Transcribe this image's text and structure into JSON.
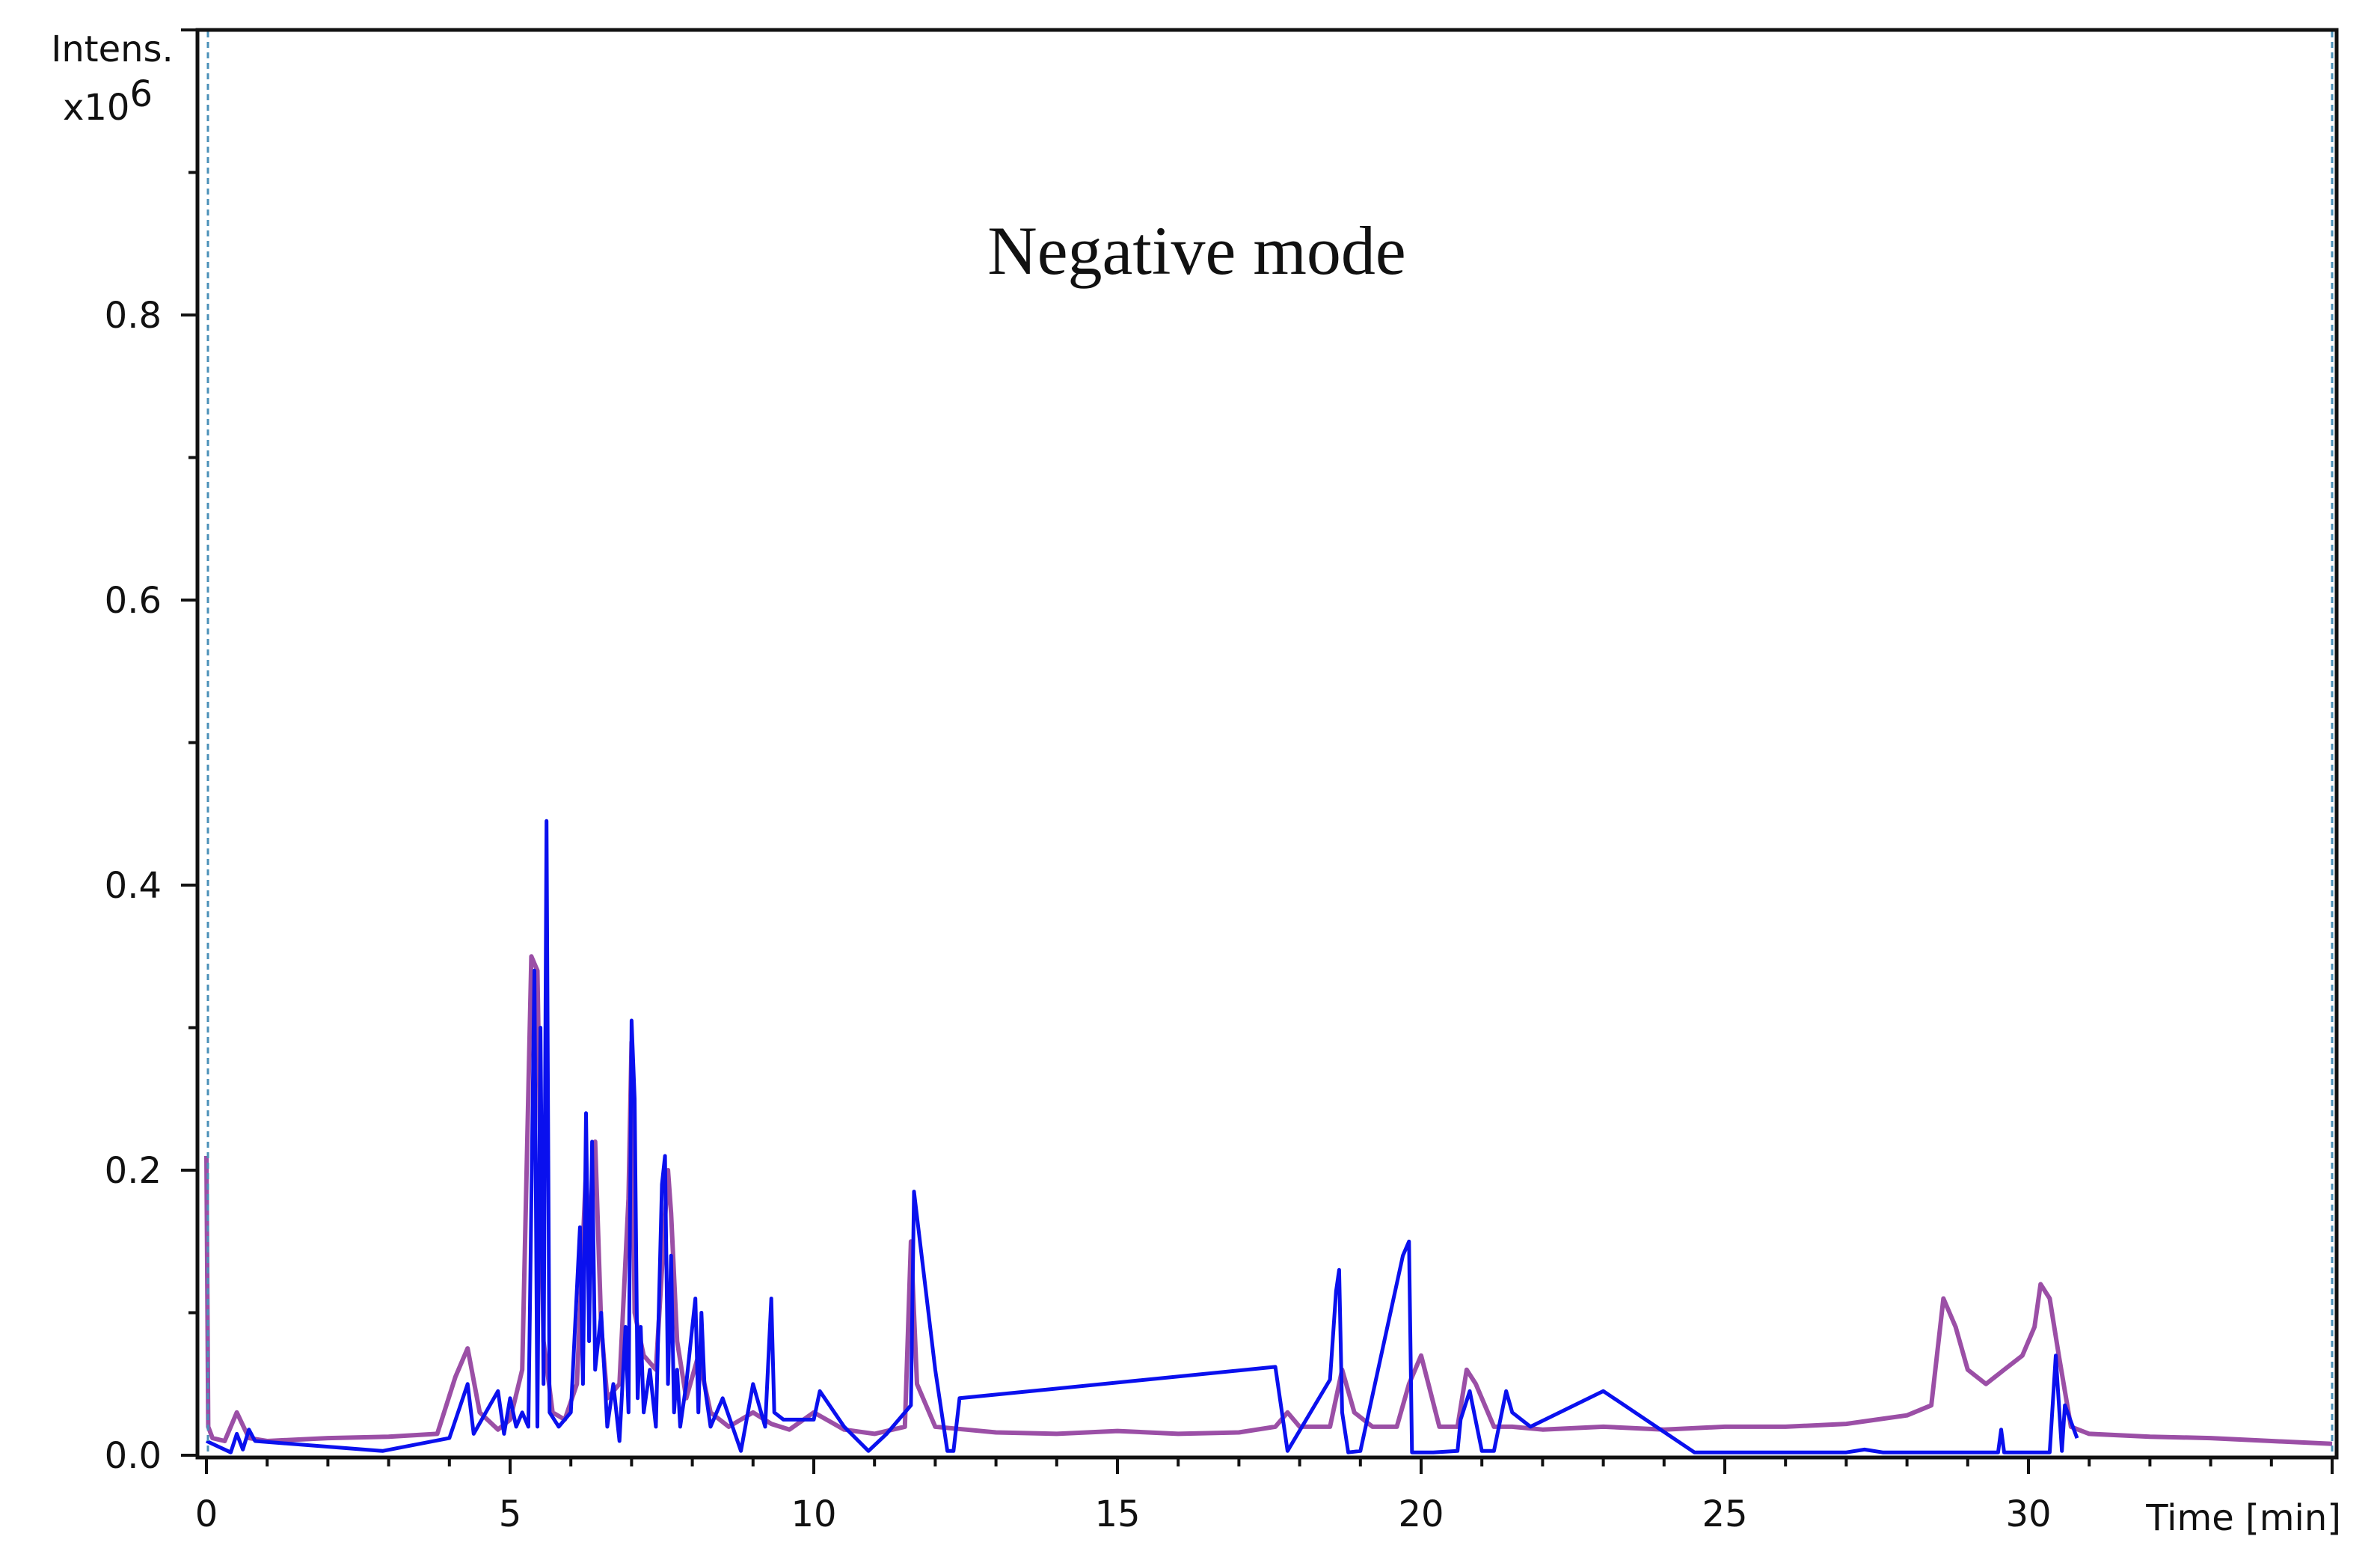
{
  "chart_data": {
    "type": "line",
    "title": "",
    "annotation": "Negative mode",
    "ylabel": "Intens.",
    "ylabel_multiplier_base": "x10",
    "ylabel_multiplier_exp": "6",
    "xlabel": "Time [min]",
    "xlim": [
      0,
      35
    ],
    "ylim": [
      0,
      1.0
    ],
    "x_ticks": [
      0,
      5,
      10,
      15,
      20,
      25,
      30
    ],
    "x_tick_labels": [
      "0",
      "5",
      "10",
      "15",
      "20",
      "25",
      "30"
    ],
    "y_ticks": [
      0.0,
      0.2,
      0.4,
      0.6,
      0.8
    ],
    "y_tick_labels": [
      "0.0",
      "0.2",
      "0.4",
      "0.6",
      "0.8"
    ],
    "grid": false,
    "legend": "none",
    "series": [
      {
        "color": "#9b4fa6",
        "x": [
          0.0,
          0.03,
          0.1,
          0.3,
          0.5,
          0.7,
          1.0,
          2.0,
          3.0,
          3.8,
          4.1,
          4.3,
          4.5,
          4.8,
          5.0,
          5.2,
          5.35,
          5.45,
          5.55,
          5.7,
          5.9,
          6.1,
          6.25,
          6.3,
          6.4,
          6.5,
          6.6,
          6.8,
          6.95,
          7.0,
          7.05,
          7.2,
          7.4,
          7.6,
          7.65,
          7.75,
          7.9,
          8.1,
          8.3,
          8.6,
          9.0,
          9.3,
          9.6,
          10.0,
          10.5,
          11.0,
          11.5,
          11.6,
          11.7,
          12.0,
          12.5,
          13.0,
          14.0,
          15.0,
          16.0,
          17.0,
          17.6,
          17.8,
          18.0,
          18.5,
          18.7,
          18.9,
          19.2,
          19.6,
          19.8,
          20.0,
          20.3,
          20.6,
          20.75,
          20.9,
          21.2,
          21.5,
          22.0,
          23.0,
          24.0,
          25.0,
          26.0,
          27.0,
          27.5,
          28.0,
          28.4,
          28.6,
          28.8,
          29.0,
          29.3,
          29.6,
          29.9,
          30.1,
          30.2,
          30.35,
          30.5,
          30.7,
          31.0,
          32.0,
          33.0,
          34.0,
          35.0
        ],
        "y": [
          0.21,
          0.02,
          0.012,
          0.01,
          0.03,
          0.012,
          0.01,
          0.012,
          0.013,
          0.015,
          0.055,
          0.075,
          0.03,
          0.018,
          0.025,
          0.06,
          0.35,
          0.34,
          0.08,
          0.03,
          0.025,
          0.05,
          0.2,
          0.15,
          0.22,
          0.09,
          0.04,
          0.05,
          0.18,
          0.29,
          0.1,
          0.07,
          0.06,
          0.2,
          0.17,
          0.08,
          0.04,
          0.07,
          0.03,
          0.02,
          0.03,
          0.022,
          0.018,
          0.03,
          0.018,
          0.015,
          0.02,
          0.15,
          0.05,
          0.02,
          0.018,
          0.016,
          0.015,
          0.017,
          0.015,
          0.016,
          0.02,
          0.03,
          0.02,
          0.02,
          0.06,
          0.03,
          0.02,
          0.02,
          0.05,
          0.07,
          0.02,
          0.02,
          0.06,
          0.05,
          0.02,
          0.02,
          0.018,
          0.02,
          0.018,
          0.02,
          0.02,
          0.022,
          0.025,
          0.028,
          0.035,
          0.11,
          0.09,
          0.06,
          0.05,
          0.06,
          0.07,
          0.09,
          0.12,
          0.11,
          0.07,
          0.02,
          0.015,
          0.013,
          0.012,
          0.01,
          0.008
        ]
      },
      {
        "color": "#0a10ee",
        "x": [
          0.0,
          0.2,
          0.4,
          0.5,
          0.6,
          0.7,
          0.8,
          2.9,
          4.0,
          4.3,
          4.4,
          4.6,
          4.8,
          4.9,
          5.0,
          5.1,
          5.2,
          5.3,
          5.4,
          5.45,
          5.5,
          5.55,
          5.6,
          5.65,
          5.8,
          6.0,
          6.15,
          6.2,
          6.25,
          6.3,
          6.35,
          6.4,
          6.5,
          6.6,
          6.7,
          6.8,
          6.9,
          6.95,
          7.0,
          7.05,
          7.1,
          7.15,
          7.2,
          7.3,
          7.4,
          7.5,
          7.55,
          7.6,
          7.65,
          7.7,
          7.75,
          7.8,
          7.9,
          8.0,
          8.05,
          8.1,
          8.15,
          8.2,
          8.3,
          8.5,
          8.8,
          9.0,
          9.2,
          9.3,
          9.35,
          9.5,
          10.0,
          10.1,
          10.5,
          10.9,
          11.2,
          11.6,
          11.65,
          12.0,
          12.2,
          12.3,
          12.4,
          17.6,
          17.8,
          18.5,
          18.6,
          18.65,
          18.7,
          18.8,
          19.0,
          19.7,
          19.8,
          19.85,
          20.2,
          20.6,
          20.65,
          20.8,
          21.0,
          21.2,
          21.4,
          21.5,
          21.8,
          23.0,
          24.5,
          27.0,
          27.3,
          27.6,
          29.5,
          29.55,
          29.6,
          30.35,
          30.45,
          30.55,
          30.6,
          30.8
        ],
        "y": [
          0.01,
          0.006,
          0.002,
          0.015,
          0.004,
          0.018,
          0.01,
          0.003,
          0.012,
          0.05,
          0.015,
          0.03,
          0.045,
          0.015,
          0.04,
          0.02,
          0.03,
          0.02,
          0.34,
          0.02,
          0.3,
          0.05,
          0.445,
          0.03,
          0.02,
          0.03,
          0.16,
          0.05,
          0.24,
          0.08,
          0.22,
          0.06,
          0.1,
          0.02,
          0.05,
          0.01,
          0.09,
          0.03,
          0.305,
          0.25,
          0.04,
          0.09,
          0.03,
          0.06,
          0.02,
          0.19,
          0.21,
          0.05,
          0.14,
          0.03,
          0.06,
          0.02,
          0.05,
          0.09,
          0.11,
          0.03,
          0.1,
          0.05,
          0.02,
          0.04,
          0.003,
          0.05,
          0.02,
          0.11,
          0.03,
          0.025,
          0.025,
          0.045,
          0.02,
          0.003,
          0.015,
          0.035,
          0.185,
          0.06,
          0.003,
          0.003,
          0.04,
          0.062,
          0.003,
          0.053,
          0.115,
          0.13,
          0.03,
          0.002,
          0.003,
          0.14,
          0.15,
          0.002,
          0.002,
          0.003,
          0.025,
          0.045,
          0.003,
          0.003,
          0.045,
          0.03,
          0.02,
          0.045,
          0.002,
          0.002,
          0.004,
          0.002,
          0.002,
          0.018,
          0.002,
          0.002,
          0.07,
          0.003,
          0.035,
          0.012
        ]
      }
    ]
  }
}
